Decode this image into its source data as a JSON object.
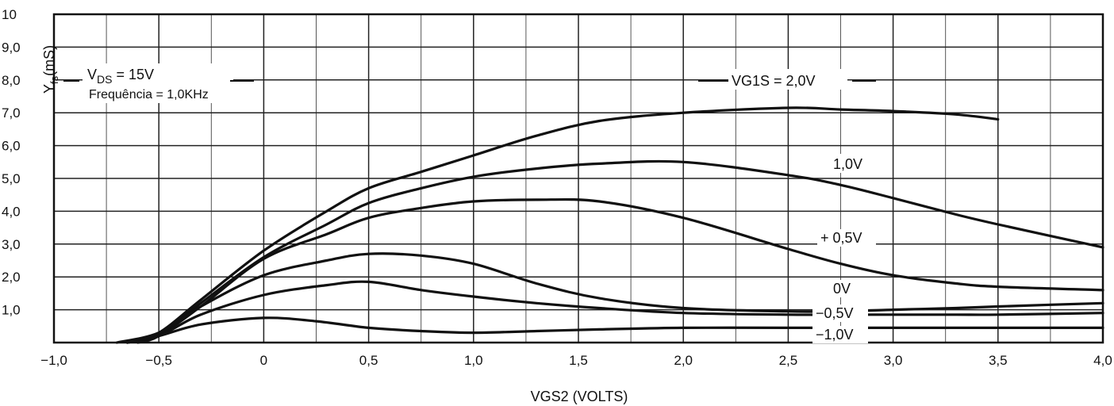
{
  "chart_data": {
    "type": "line",
    "title": "",
    "xlabel": "VGS2 (VOLTS)",
    "ylabel": "Y",
    "ylabel_sub": "fs",
    "ylabel_unit": "(mS)",
    "xlim": [
      -1.0,
      4.0
    ],
    "ylim": [
      0,
      10
    ],
    "grid": true,
    "x_ticks": [
      -1.0,
      -0.5,
      0,
      0.5,
      1.0,
      1.5,
      2.0,
      2.5,
      3.0,
      3.5,
      4.0
    ],
    "x_tick_labels": [
      "−1,0",
      "−0,5",
      "0",
      "0,5",
      "1,0",
      "1,5",
      "2,0",
      "2,5",
      "3,0",
      "3,5",
      "4,0"
    ],
    "y_ticks": [
      1,
      2,
      3,
      4,
      5,
      6,
      7,
      8,
      9,
      10
    ],
    "y_tick_labels": [
      "1,0",
      "2,0",
      "3,0",
      "4,0",
      "5,0",
      "6,0",
      "7,0",
      "8,0",
      "9,0",
      "10"
    ],
    "conditions": {
      "vds_prefix": "V",
      "vds_sub": "DS",
      "vds_value": " = 15V",
      "frequency": "Frequência = 1,0KHz"
    },
    "series": [
      {
        "name": "VG1S = 2,0V",
        "x": [
          -0.65,
          -0.5,
          -0.3,
          0.0,
          0.3,
          0.5,
          0.75,
          1.0,
          1.3,
          1.6,
          2.0,
          2.5,
          2.75,
          3.0,
          3.3,
          3.5
        ],
        "y": [
          0.0,
          0.3,
          1.3,
          2.8,
          4.0,
          4.7,
          5.2,
          5.7,
          6.3,
          6.75,
          7.0,
          7.15,
          7.1,
          7.05,
          6.95,
          6.8
        ]
      },
      {
        "name": "1,0V",
        "x": [
          -0.65,
          -0.5,
          -0.3,
          0.0,
          0.3,
          0.5,
          0.75,
          1.0,
          1.3,
          1.6,
          2.0,
          2.5,
          2.75,
          3.0,
          3.3,
          3.5,
          4.0
        ],
        "y": [
          0.0,
          0.25,
          1.2,
          2.6,
          3.6,
          4.25,
          4.7,
          5.05,
          5.3,
          5.45,
          5.5,
          5.1,
          4.8,
          4.4,
          3.9,
          3.6,
          2.9
        ]
      },
      {
        "name": "+ 0,5V",
        "x": [
          -0.6,
          -0.5,
          -0.3,
          0.0,
          0.3,
          0.5,
          0.75,
          1.0,
          1.3,
          1.6,
          2.0,
          2.5,
          2.75,
          3.0,
          3.3,
          3.5,
          4.0
        ],
        "y": [
          0.0,
          0.2,
          1.1,
          2.55,
          3.3,
          3.8,
          4.1,
          4.3,
          4.35,
          4.3,
          3.8,
          2.85,
          2.4,
          2.05,
          1.8,
          1.7,
          1.6
        ]
      },
      {
        "name": "0V",
        "x": [
          -0.7,
          -0.5,
          -0.3,
          0.0,
          0.3,
          0.5,
          0.75,
          1.0,
          1.3,
          1.6,
          2.0,
          2.5,
          2.75,
          3.0,
          3.3,
          3.5,
          4.0
        ],
        "y": [
          0.0,
          0.3,
          1.1,
          2.05,
          2.5,
          2.7,
          2.65,
          2.4,
          1.8,
          1.35,
          1.05,
          0.95,
          0.95,
          1.0,
          1.05,
          1.1,
          1.2
        ]
      },
      {
        "name": "−0,5V",
        "x": [
          -0.65,
          -0.5,
          -0.3,
          0.0,
          0.3,
          0.5,
          0.75,
          1.0,
          1.3,
          1.6,
          2.0,
          2.5,
          2.75,
          3.0,
          3.3,
          3.5,
          4.0
        ],
        "y": [
          0.0,
          0.2,
          0.85,
          1.45,
          1.75,
          1.85,
          1.6,
          1.4,
          1.2,
          1.05,
          0.9,
          0.85,
          0.85,
          0.85,
          0.85,
          0.85,
          0.9
        ]
      },
      {
        "name": "−1,0V",
        "x": [
          -0.65,
          -0.5,
          -0.3,
          0.0,
          0.25,
          0.5,
          0.75,
          1.0,
          1.3,
          1.6,
          2.0,
          2.5,
          2.75,
          3.0,
          3.5,
          4.0
        ],
        "y": [
          0.0,
          0.2,
          0.55,
          0.75,
          0.65,
          0.45,
          0.35,
          0.3,
          0.35,
          0.4,
          0.45,
          0.45,
          0.45,
          0.45,
          0.45,
          0.45
        ]
      }
    ]
  }
}
